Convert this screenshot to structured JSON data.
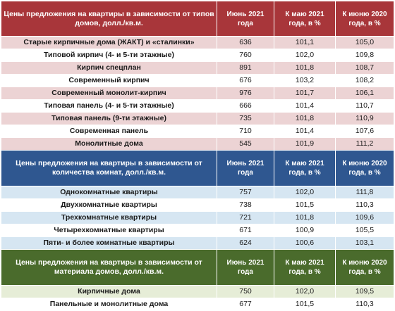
{
  "sections": [
    {
      "header": {
        "title": "Цены предложения на квартиры в зависимости от типов домов, долл./кв.м.",
        "col_june": "Июнь 2021 года",
        "col_may": "К маю 2021 года, в %",
        "col_june2020": "К июню 2020 года, в %"
      },
      "rows": [
        {
          "name": "Старые кирпичные дома (ЖАКТ) и «сталинки»",
          "june": "636",
          "may": "101,1",
          "june2020": "105,0"
        },
        {
          "name": "Типовой кирпич (4- и 5-ти этажные)",
          "june": "760",
          "may": "102,0",
          "june2020": "109,8"
        },
        {
          "name": "Кирпич спецплан",
          "june": "891",
          "may": "101,8",
          "june2020": "108,7"
        },
        {
          "name": "Современный кирпич",
          "june": "676",
          "may": "103,2",
          "june2020": "108,2"
        },
        {
          "name": "Современный монолит-кирпич",
          "june": "976",
          "may": "101,7",
          "june2020": "106,1"
        },
        {
          "name": "Типовая панель (4- и 5-ти этажные)",
          "june": "666",
          "may": "101,4",
          "june2020": "110,7"
        },
        {
          "name": "Типовая панель (9-ти этажные)",
          "june": "735",
          "may": "101,8",
          "june2020": "110,9"
        },
        {
          "name": "Современная панель",
          "june": "710",
          "may": "101,4",
          "june2020": "107,6"
        },
        {
          "name": "Монолитные дома",
          "june": "545",
          "may": "101,9",
          "june2020": "111,2"
        }
      ]
    },
    {
      "header": {
        "title": "Цены предложения на квартиры в зависимости от количества комнат, долл./кв.м.",
        "col_june": "Июнь 2021 года",
        "col_may": "К маю 2021 года, в %",
        "col_june2020": "К июню 2020 года, в %"
      },
      "rows": [
        {
          "name": "Однокомнатные квартиры",
          "june": "757",
          "may": "102,0",
          "june2020": "111,8"
        },
        {
          "name": "Двухкомнатные квартиры",
          "june": "738",
          "may": "101,5",
          "june2020": "110,3"
        },
        {
          "name": "Трехкомнатные квартиры",
          "june": "721",
          "may": "101,8",
          "june2020": "109,6"
        },
        {
          "name": "Четырехкомнатные квартиры",
          "june": "671",
          "may": "100,9",
          "june2020": "105,5"
        },
        {
          "name": "Пяти- и более комнатные квартиры",
          "june": "624",
          "may": "100,6",
          "june2020": "103,1"
        }
      ]
    },
    {
      "header": {
        "title": "Цены предложения на квартиры в зависимости от материала домов, долл./кв.м.",
        "col_june": "Июнь 2021 года",
        "col_may": "К маю 2021 года, в %",
        "col_june2020": "К июню 2020 года, в %"
      },
      "rows": [
        {
          "name": "Кирпичные дома",
          "june": "750",
          "may": "102,0",
          "june2020": "109,5"
        },
        {
          "name": "Панельные и монолитные дома",
          "june": "677",
          "may": "101,5",
          "june2020": "110,3"
        }
      ]
    }
  ]
}
